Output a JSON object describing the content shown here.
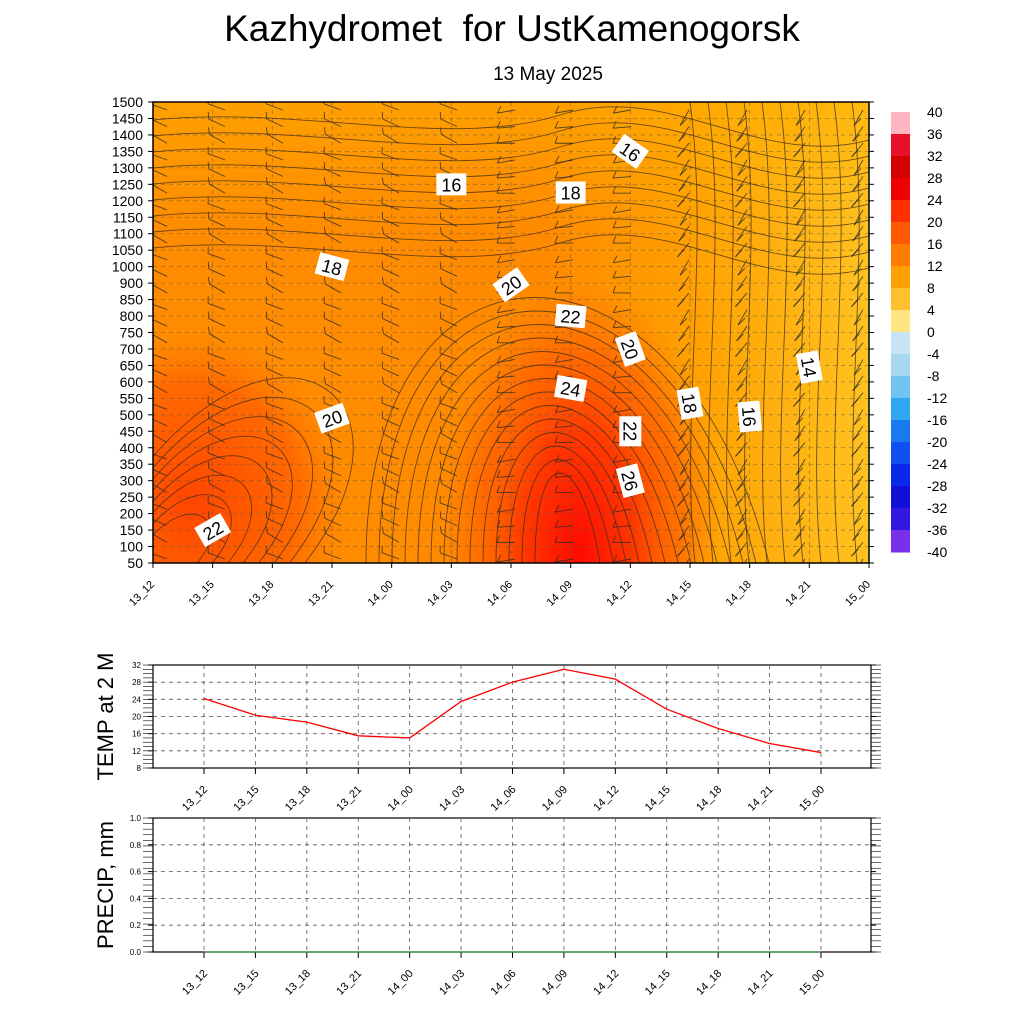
{
  "title": "Kazhydromet  for UstKamenogorsk",
  "subtitle": "13 May 2025",
  "chart_data": [
    {
      "type": "heatmap",
      "description_kind": "time-height cross section of temperature with contour lines and wind barbs",
      "x_ticks": [
        "13_12",
        "13_15",
        "13_18",
        "13_21",
        "14_00",
        "14_03",
        "14_06",
        "14_09",
        "14_12",
        "14_15",
        "14_18",
        "14_21",
        "15_00"
      ],
      "y_ticks": [
        50,
        100,
        150,
        200,
        250,
        300,
        350,
        400,
        450,
        500,
        550,
        600,
        650,
        700,
        750,
        800,
        850,
        900,
        1000,
        1050,
        1100,
        1150,
        1200,
        1250,
        1300,
        1350,
        1400,
        1450,
        1500
      ],
      "colorbar_ticks": [
        40,
        36,
        32,
        28,
        24,
        20,
        16,
        12,
        8,
        4,
        0,
        -4,
        -8,
        -12,
        -16,
        -20,
        -24,
        -28,
        -32,
        -36,
        -40
      ],
      "contour_labels": [
        {
          "text": "16",
          "x": "14_03",
          "y": 1250,
          "angle": 0
        },
        {
          "text": "16",
          "x": "14_12",
          "y": 1350,
          "angle": 35
        },
        {
          "text": "18",
          "x": "14_09",
          "y": 1225,
          "angle": 0
        },
        {
          "text": "18",
          "x": "13_21",
          "y": 1000,
          "angle": 15
        },
        {
          "text": "20",
          "x": "14_06",
          "y": 895,
          "angle": -35
        },
        {
          "text": "22",
          "x": "14_09",
          "y": 800,
          "angle": 5
        },
        {
          "text": "20",
          "x": "14_12",
          "y": 700,
          "angle": 70
        },
        {
          "text": "24",
          "x": "14_09",
          "y": 580,
          "angle": 10
        },
        {
          "text": "20",
          "x": "13_21",
          "y": 490,
          "angle": -20
        },
        {
          "text": "22",
          "x": "14_12",
          "y": 450,
          "angle": 90
        },
        {
          "text": "26",
          "x": "14_12",
          "y": 300,
          "angle": 75
        },
        {
          "text": "18",
          "x": "14_15",
          "y": 535,
          "angle": 80
        },
        {
          "text": "16",
          "x": "14_18",
          "y": 495,
          "angle": 85
        },
        {
          "text": "14",
          "x": "14_21",
          "y": 645,
          "angle": 80
        },
        {
          "text": "22",
          "x": "13_15",
          "y": 150,
          "angle": -30
        }
      ]
    },
    {
      "type": "line",
      "ylabel": "TEMP at 2 M",
      "x": [
        "13_12",
        "13_15",
        "13_18",
        "13_21",
        "14_00",
        "14_03",
        "14_06",
        "14_09",
        "14_12",
        "14_15",
        "14_18",
        "14_21",
        "15_00"
      ],
      "series": [
        {
          "values": [
            24.2,
            20.3,
            18.7,
            15.5,
            15.0,
            23.5,
            28.0,
            31.0,
            28.7,
            21.7,
            17.2,
            13.7,
            11.6
          ],
          "color": "#ff0000"
        }
      ],
      "y_ticks": [
        8,
        12,
        16,
        20,
        24,
        28,
        32
      ],
      "ylim": [
        8,
        32
      ],
      "grid": true
    },
    {
      "type": "line",
      "ylabel": "PRECIP, mm",
      "x": [
        "13_12",
        "13_15",
        "13_18",
        "13_21",
        "14_00",
        "14_03",
        "14_06",
        "14_09",
        "14_12",
        "14_15",
        "14_18",
        "14_21",
        "15_00"
      ],
      "series": [
        {
          "values": [
            0,
            0,
            0,
            0,
            0,
            0,
            0,
            0,
            0,
            0,
            0,
            0,
            0
          ],
          "color": "#2e8b2e"
        }
      ],
      "y_ticks": [
        "0.0",
        "0.2",
        "0.4",
        "0.6",
        "0.8",
        "1.0"
      ],
      "ylim": [
        0,
        1
      ],
      "grid": true
    }
  ]
}
